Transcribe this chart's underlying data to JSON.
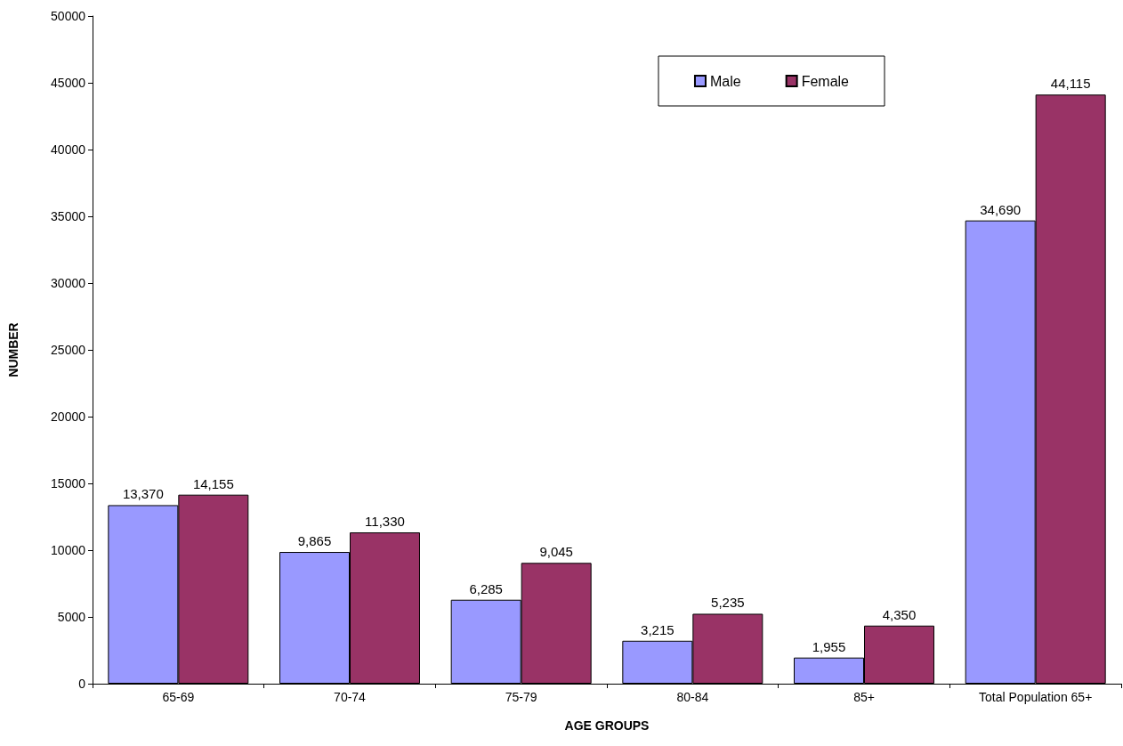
{
  "chart_data": {
    "type": "bar",
    "xlabel": "AGE GROUPS",
    "ylabel": "NUMBER",
    "categories": [
      "65-69",
      "70-74",
      "75-79",
      "80-84",
      "85+",
      "Total Population 65+"
    ],
    "series": [
      {
        "name": "Male",
        "color": "#9999ff",
        "values": [
          13370,
          9865,
          6285,
          3215,
          1955,
          34690
        ],
        "value_labels": [
          "13,370",
          "9,865",
          "6,285",
          "3,215",
          "1,955",
          "34,690"
        ]
      },
      {
        "name": "Female",
        "color": "#993366",
        "values": [
          14155,
          11330,
          9045,
          5235,
          4350,
          44115
        ],
        "value_labels": [
          "14,155",
          "11,330",
          "9,045",
          "5,235",
          "4,350",
          "44,115"
        ]
      }
    ],
    "ylim": [
      0,
      50000
    ],
    "yticks": [
      0,
      5000,
      10000,
      15000,
      20000,
      25000,
      30000,
      35000,
      40000,
      45000,
      50000
    ],
    "grid": false,
    "legend": "top right"
  }
}
